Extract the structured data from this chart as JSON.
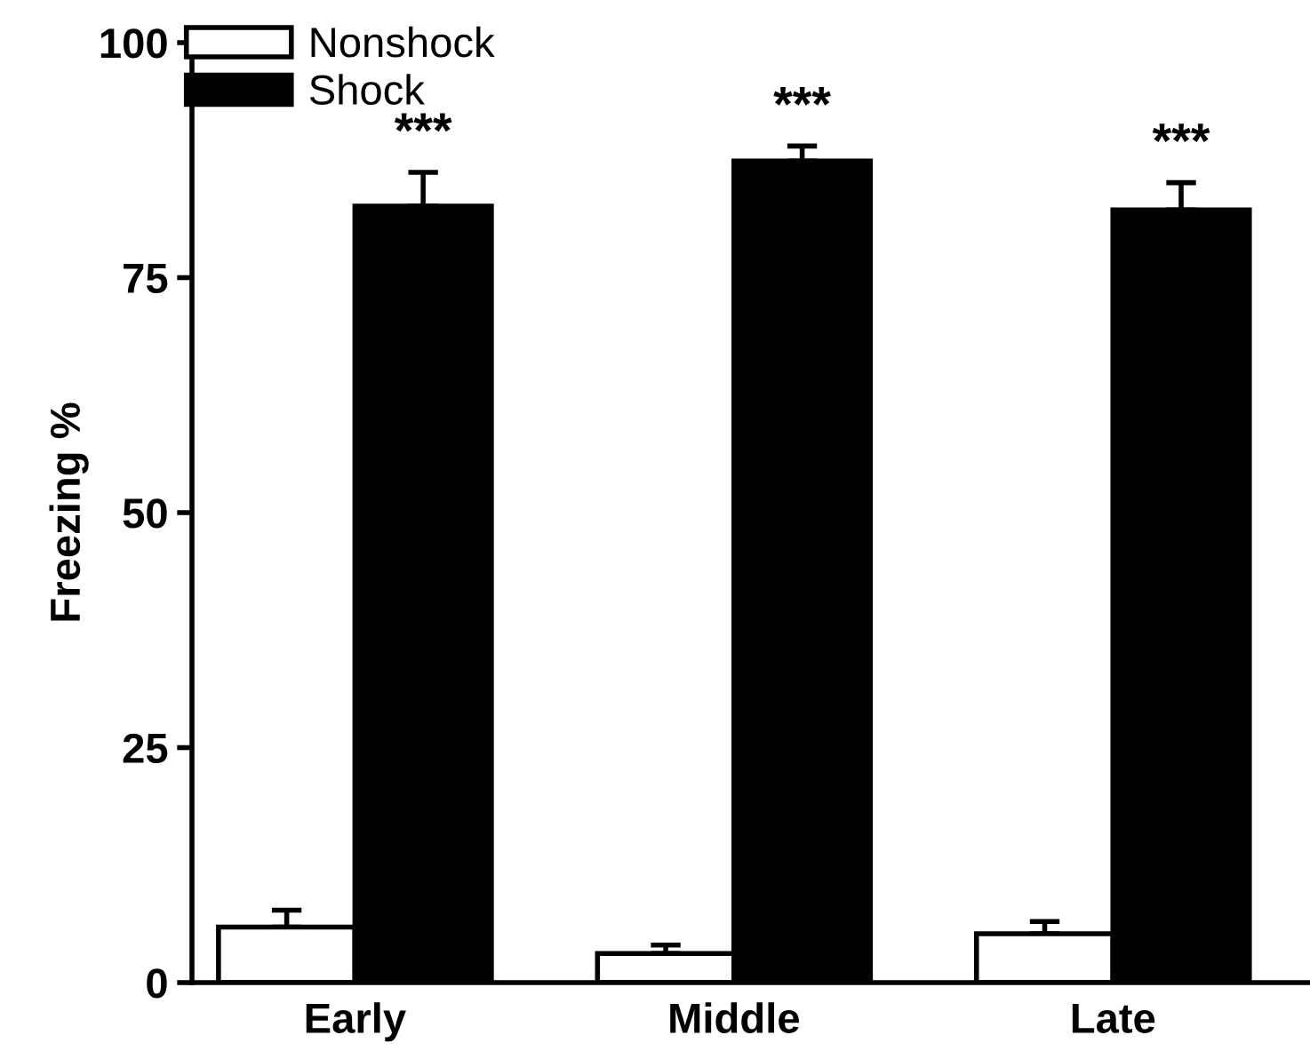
{
  "chart_data": {
    "type": "bar",
    "ylabel": "Freezing %",
    "categories": [
      "Early",
      "Middle",
      "Late"
    ],
    "series": [
      {
        "name": "Nonshock",
        "color": "#ffffff",
        "values": [
          5.9,
          3.1,
          5.2
        ],
        "errors": [
          [
            5.9,
            7.7
          ],
          [
            3.1,
            4.0
          ],
          [
            5.2,
            6.5
          ]
        ]
      },
      {
        "name": "Shock",
        "color": "#000000",
        "values": [
          82.6,
          87.4,
          82.2
        ],
        "errors": [
          [
            82.6,
            86.2
          ],
          [
            87.4,
            89.0
          ],
          [
            82.2,
            85.1
          ]
        ]
      }
    ],
    "annotations": [
      "***",
      "***",
      "***"
    ],
    "ylim": [
      0,
      100
    ],
    "yticks": [
      0,
      25,
      50,
      75,
      100
    ],
    "grid": false,
    "legend": "top left"
  }
}
